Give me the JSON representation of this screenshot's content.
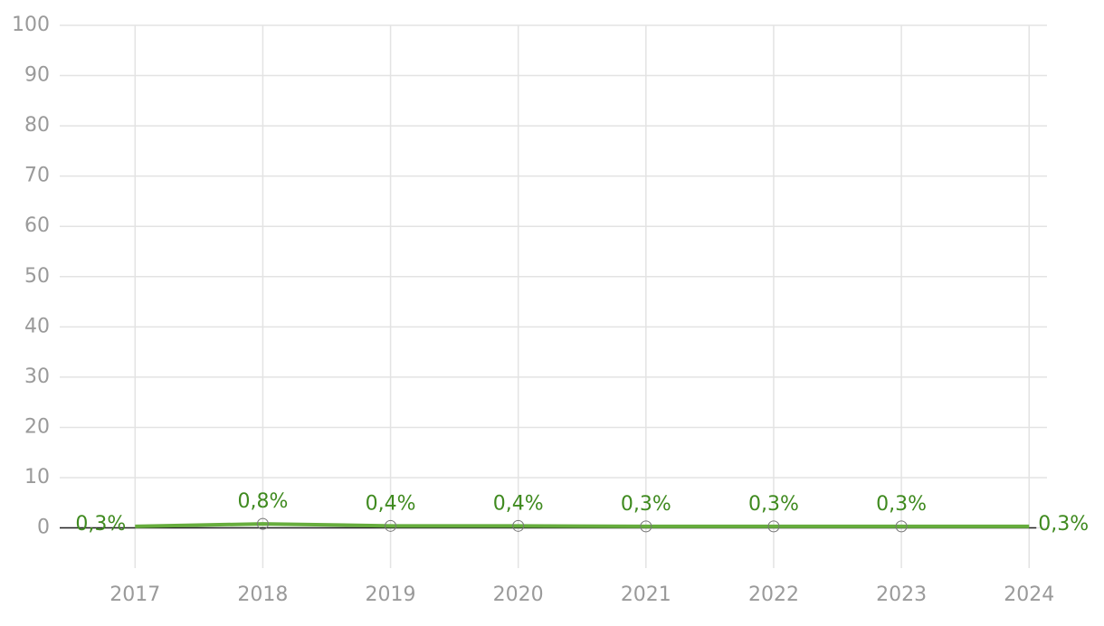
{
  "chart_data": {
    "type": "line",
    "x": [
      2017,
      2018,
      2019,
      2020,
      2021,
      2022,
      2023,
      2024
    ],
    "series": [
      {
        "color": "#66ad3d",
        "label_color": "#3f8a1f",
        "values": [
          0.3,
          0.8,
          0.4,
          0.4,
          0.3,
          0.3,
          0.3,
          0.3
        ],
        "value_labels": [
          "0,3%",
          "0,8%",
          "0,4%",
          "0,4%",
          "0,3%",
          "0,3%",
          "0,3%",
          "0,3%"
        ]
      }
    ],
    "xlim": [
      2016.41,
      2024.14
    ],
    "xticks": [
      2017,
      2018,
      2019,
      2020,
      2021,
      2022,
      2023,
      2024
    ],
    "ylim": [
      -8,
      100
    ],
    "yticks": [
      0,
      10,
      20,
      30,
      40,
      50,
      60,
      70,
      80,
      90,
      100
    ],
    "grid": true,
    "zero_line": true
  }
}
